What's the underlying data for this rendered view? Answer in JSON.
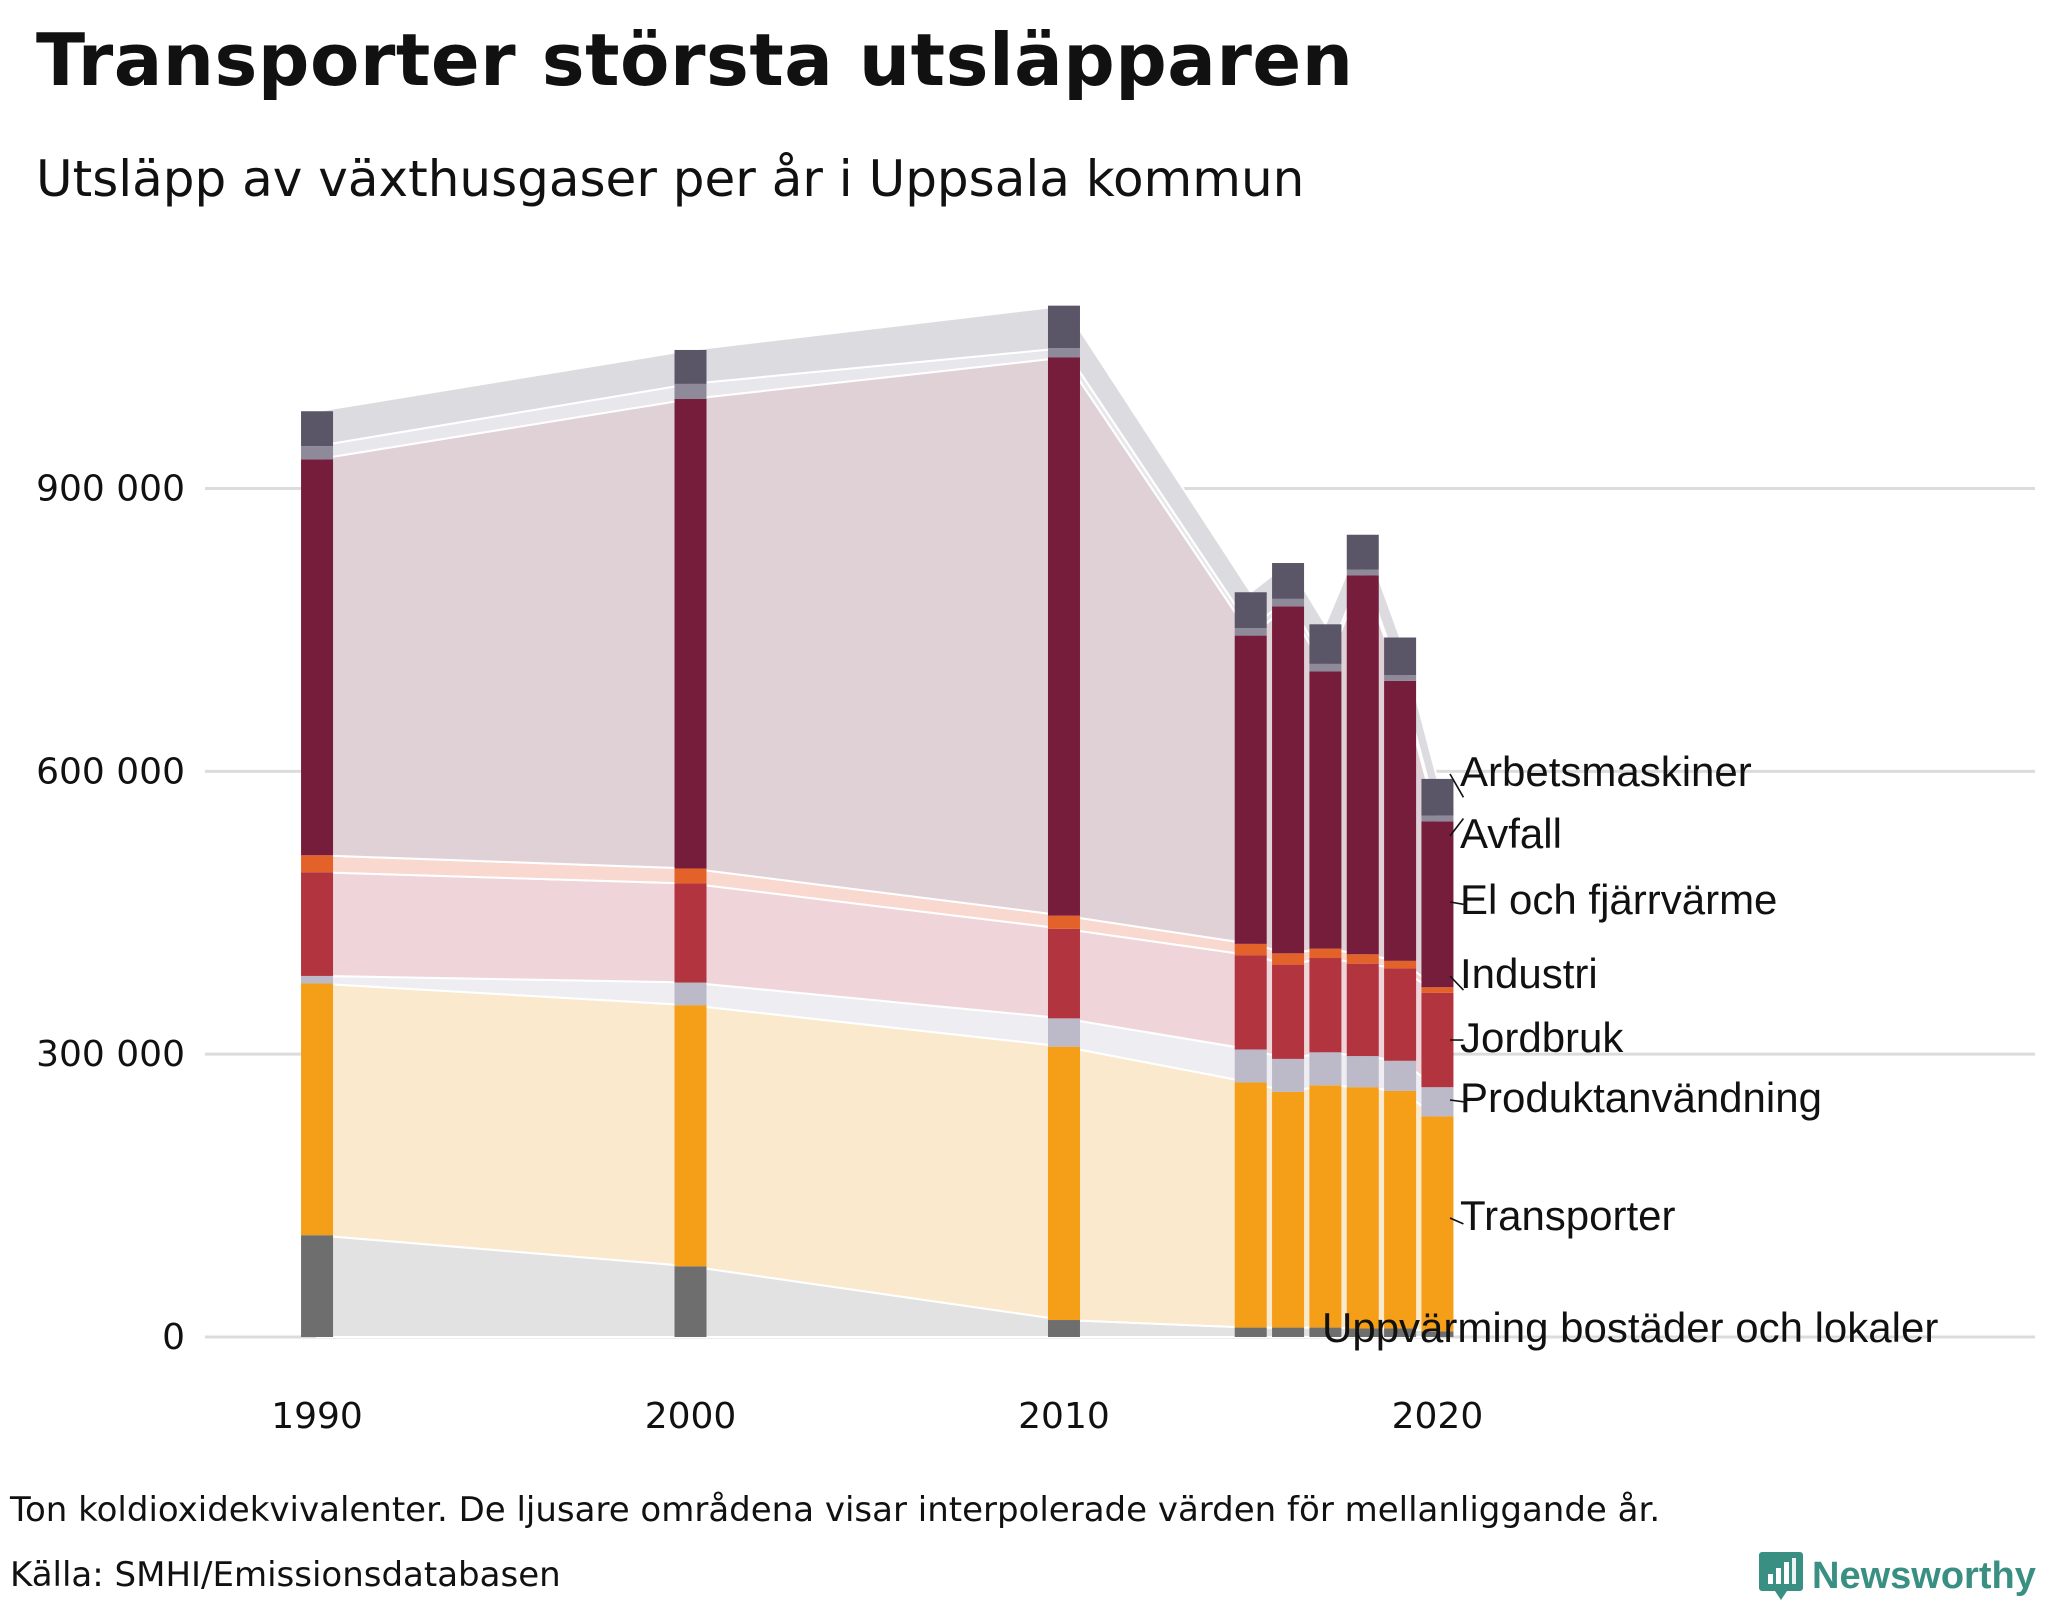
{
  "title": "Transporter största utsläpparen",
  "subtitle": "Utsläpp av växthusgaser per år i Uppsala kommun",
  "note": "Ton koldioxidekvivalenter. De ljusare områdena visar interpolerade värden för mellanliggande år.",
  "source": "Källa: SMHI/Emissionsdatabasen",
  "brand": "Newsworthy",
  "chart_data": {
    "type": "bar",
    "stacked": true,
    "title": "Utsläpp av växthusgaser per år i Uppsala kommun",
    "xlabel": "",
    "ylabel": "Ton koldioxidekvivalenter",
    "ylim": [
      0,
      1100000
    ],
    "yticks": [
      0,
      300000,
      600000,
      900000
    ],
    "ytick_labels": [
      "0",
      "300 000",
      "600 000",
      "900 000"
    ],
    "xticks": [
      1990,
      2000,
      2010,
      2020
    ],
    "xtick_labels": [
      "1990",
      "2000",
      "2010",
      "2020"
    ],
    "xlim": [
      1987,
      2036
    ],
    "grid": true,
    "years": [
      1990,
      2000,
      2010,
      2015,
      2016,
      2017,
      2018,
      2019,
      2020
    ],
    "series": [
      {
        "name": "Uppvärming bostäder och lokaler",
        "color": "#6e6e6e",
        "band": "#e2e2e2",
        "values": [
          108000,
          75000,
          18000,
          10000,
          10000,
          10000,
          9000,
          9000,
          6000
        ]
      },
      {
        "name": "Transporter",
        "color": "#f59e17",
        "band": "#fbe9cd",
        "values": [
          267000,
          277000,
          290000,
          260000,
          250000,
          257000,
          256000,
          252000,
          228000
        ]
      },
      {
        "name": "Produktanvändning",
        "color": "#bcb9c8",
        "band": "#eeedf1",
        "values": [
          8000,
          24000,
          30000,
          35000,
          35000,
          35000,
          33000,
          32000,
          31000
        ]
      },
      {
        "name": "Jordbruk",
        "color": "#b2343e",
        "band": "#efd5d9",
        "values": [
          110000,
          105000,
          95000,
          100000,
          100000,
          100000,
          98000,
          98000,
          100000
        ]
      },
      {
        "name": "Industri",
        "color": "#e3622a",
        "band": "#f8d8cf",
        "values": [
          18000,
          16000,
          14000,
          12000,
          12000,
          10000,
          10000,
          8000,
          6000
        ]
      },
      {
        "name": "El och fjärrvärme",
        "color": "#761d3c",
        "band": "#e0d1d7",
        "values": [
          420000,
          498000,
          592000,
          327000,
          368000,
          294000,
          402000,
          297000,
          176000
        ]
      },
      {
        "name": "Avfall",
        "color": "#8e8a99",
        "band": "#e8e7ec",
        "values": [
          14000,
          16000,
          10000,
          8000,
          8000,
          8000,
          6000,
          6000,
          6000
        ]
      },
      {
        "name": "Arbetsmaskiner",
        "color": "#5b5667",
        "band": "#dcdbe0",
        "values": [
          37000,
          36000,
          45000,
          38000,
          38000,
          42000,
          37000,
          40000,
          39000
        ]
      }
    ],
    "legend_position": "right-end-labels"
  }
}
